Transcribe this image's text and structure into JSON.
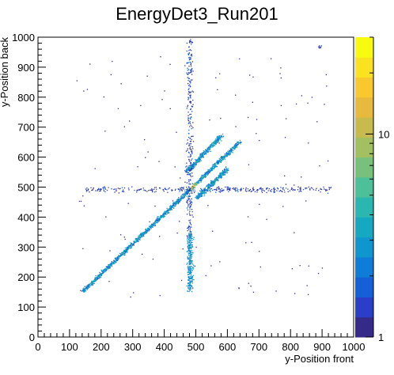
{
  "chart_data": {
    "type": "heatmap",
    "title": "EnergyDet3_Run201",
    "xlabel": "y-Position front",
    "ylabel": "y-Position back",
    "xlim": [
      0,
      1000
    ],
    "ylim": [
      0,
      1000
    ],
    "x_ticks": [
      "0",
      "100",
      "200",
      "300",
      "400",
      "500",
      "600",
      "700",
      "800",
      "900",
      "1000"
    ],
    "y_ticks": [
      "0",
      "100",
      "200",
      "300",
      "400",
      "500",
      "600",
      "700",
      "800",
      "900",
      "1000"
    ],
    "colorbar": {
      "scale": "log",
      "range": [
        1,
        30
      ],
      "ticks": [
        "1",
        "10"
      ],
      "colors": [
        "#352a87",
        "#2a3ec8",
        "#1560d6",
        "#0f7dd7",
        "#0e97ce",
        "#14a9c1",
        "#2ab7b0",
        "#4dbf99",
        "#78c17d",
        "#a2bf62",
        "#c8bb4d",
        "#e7b93c",
        "#f9c82e",
        "#f9e21f",
        "#f9fb0e"
      ]
    },
    "features": [
      {
        "name": "main diagonal",
        "from": [
          140,
          150
        ],
        "to": [
          640,
          650
        ],
        "peak": [
          490,
          500
        ]
      },
      {
        "name": "upper diagonal",
        "from": [
          470,
          550
        ],
        "to": [
          580,
          670
        ]
      },
      {
        "name": "lower diagonal",
        "from": [
          500,
          460
        ],
        "to": [
          600,
          560
        ]
      },
      {
        "name": "vertical band",
        "x": 480,
        "y_range": [
          150,
          1000
        ]
      },
      {
        "name": "horizontal band",
        "y": 490,
        "x_range": [
          150,
          930
        ]
      }
    ],
    "grid": false,
    "legend": "none"
  }
}
